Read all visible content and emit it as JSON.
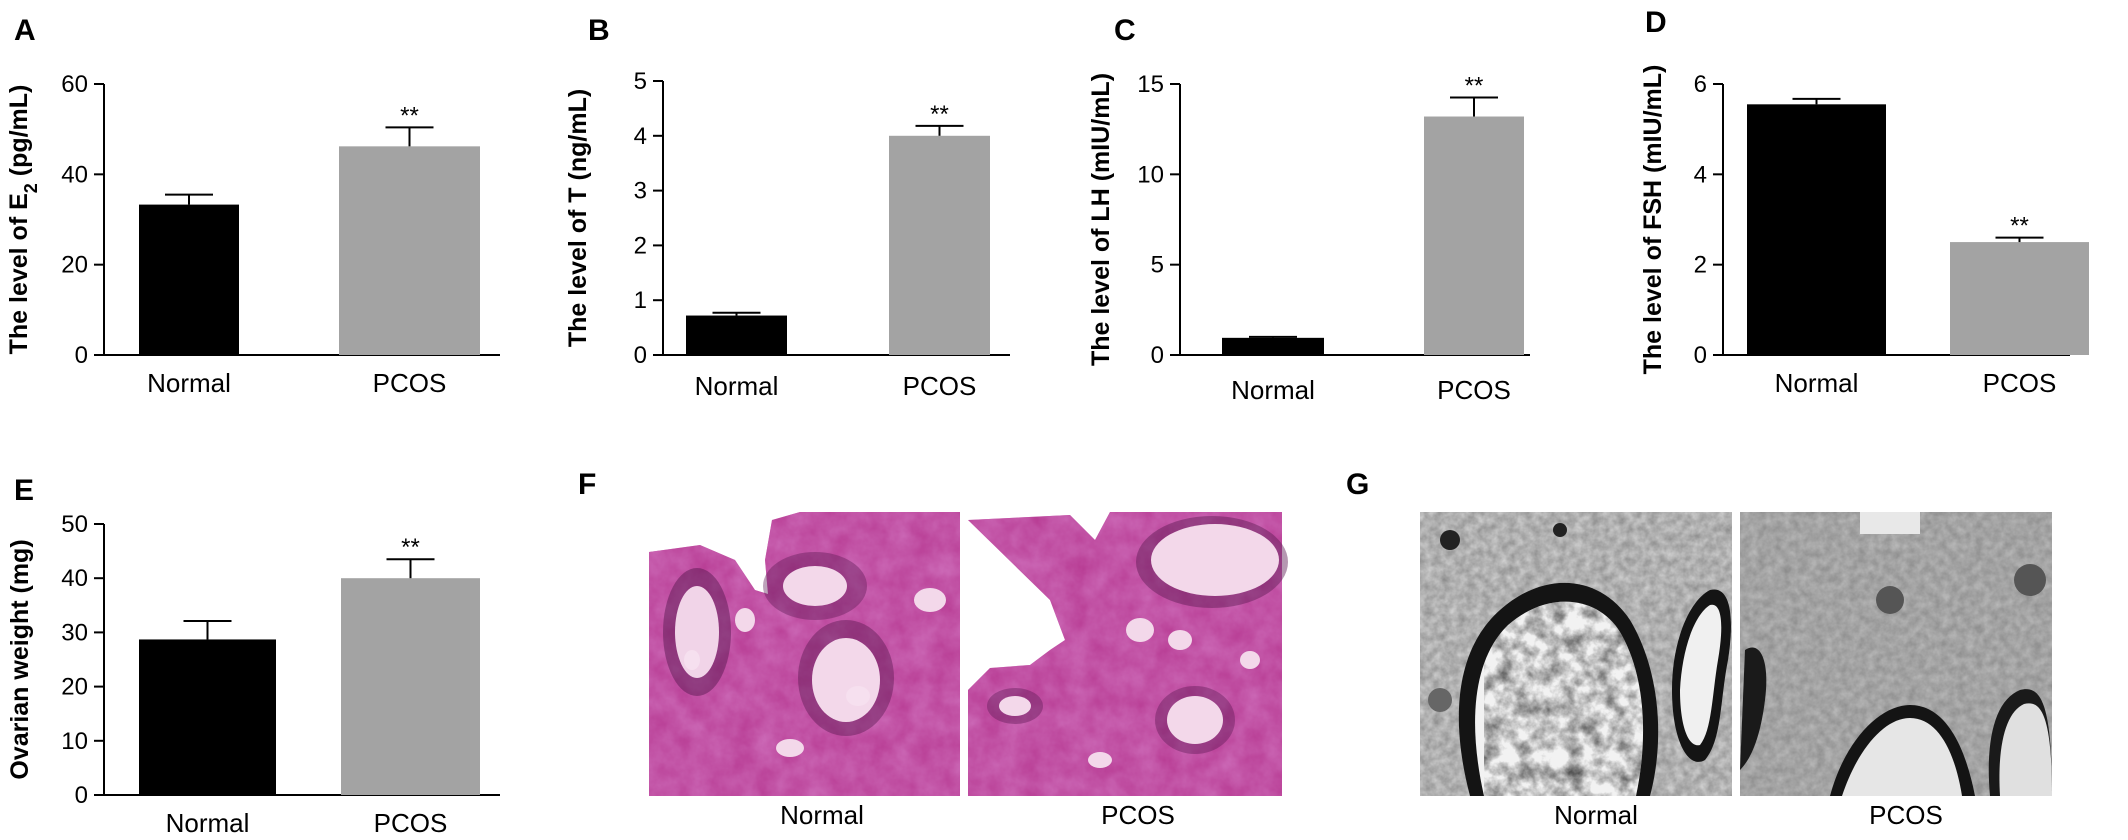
{
  "chart_data": [
    {
      "panel": "A",
      "type": "bar",
      "categories": [
        "Normal",
        "PCOS"
      ],
      "values": [
        33.3,
        46.2
      ],
      "errors": [
        2.2,
        4.2
      ],
      "significance": [
        "",
        "**"
      ],
      "ylabel": "The level of E",
      "ylabel_sub": "2",
      "ylabel_tail": " (pg/mL)",
      "ylim": [
        0,
        60
      ],
      "yticks": [
        0,
        20,
        40,
        60
      ]
    },
    {
      "panel": "B",
      "type": "bar",
      "categories": [
        "Normal",
        "PCOS"
      ],
      "values": [
        0.72,
        4.0
      ],
      "errors": [
        0.05,
        0.18
      ],
      "significance": [
        "",
        "**"
      ],
      "ylabel": "The level of T (ng/mL)",
      "ylabel_sub": "",
      "ylabel_tail": "",
      "ylim": [
        0,
        5
      ],
      "yticks": [
        0,
        1,
        2,
        3,
        4,
        5
      ]
    },
    {
      "panel": "C",
      "type": "bar",
      "categories": [
        "Normal",
        "PCOS"
      ],
      "values": [
        0.95,
        13.2
      ],
      "errors": [
        0.05,
        1.05
      ],
      "significance": [
        "",
        "**"
      ],
      "ylabel": "The level of LH (mIU/mL)",
      "ylabel_sub": "",
      "ylabel_tail": "",
      "ylim": [
        0,
        15
      ],
      "yticks": [
        0,
        5,
        10,
        15
      ]
    },
    {
      "panel": "D",
      "type": "bar",
      "categories": [
        "Normal",
        "PCOS"
      ],
      "values": [
        5.55,
        2.5
      ],
      "errors": [
        0.12,
        0.1
      ],
      "significance": [
        "",
        "**"
      ],
      "ylabel": "The level of FSH (mIU/mL)",
      "ylabel_sub": "",
      "ylabel_tail": "",
      "ylim": [
        0,
        6
      ],
      "yticks": [
        0,
        2,
        4,
        6
      ]
    },
    {
      "panel": "E",
      "type": "bar",
      "categories": [
        "Normal",
        "PCOS"
      ],
      "values": [
        28.7,
        40.0
      ],
      "errors": [
        3.4,
        3.5
      ],
      "significance": [
        "",
        "**"
      ],
      "ylabel": "Ovarian weight (mg)",
      "ylabel_sub": "",
      "ylabel_tail": "",
      "ylim": [
        0,
        50
      ],
      "yticks": [
        0,
        10,
        20,
        30,
        40,
        50
      ]
    }
  ],
  "colors": {
    "normal": "#000000",
    "pcos": "#a3a3a3"
  },
  "images": [
    {
      "panel": "F",
      "labels": [
        "Normal",
        "PCOS"
      ],
      "style": "H&E histology micrograph"
    },
    {
      "panel": "G",
      "labels": [
        "Normal",
        "PCOS"
      ],
      "style": "transmission electron micrograph"
    }
  ]
}
